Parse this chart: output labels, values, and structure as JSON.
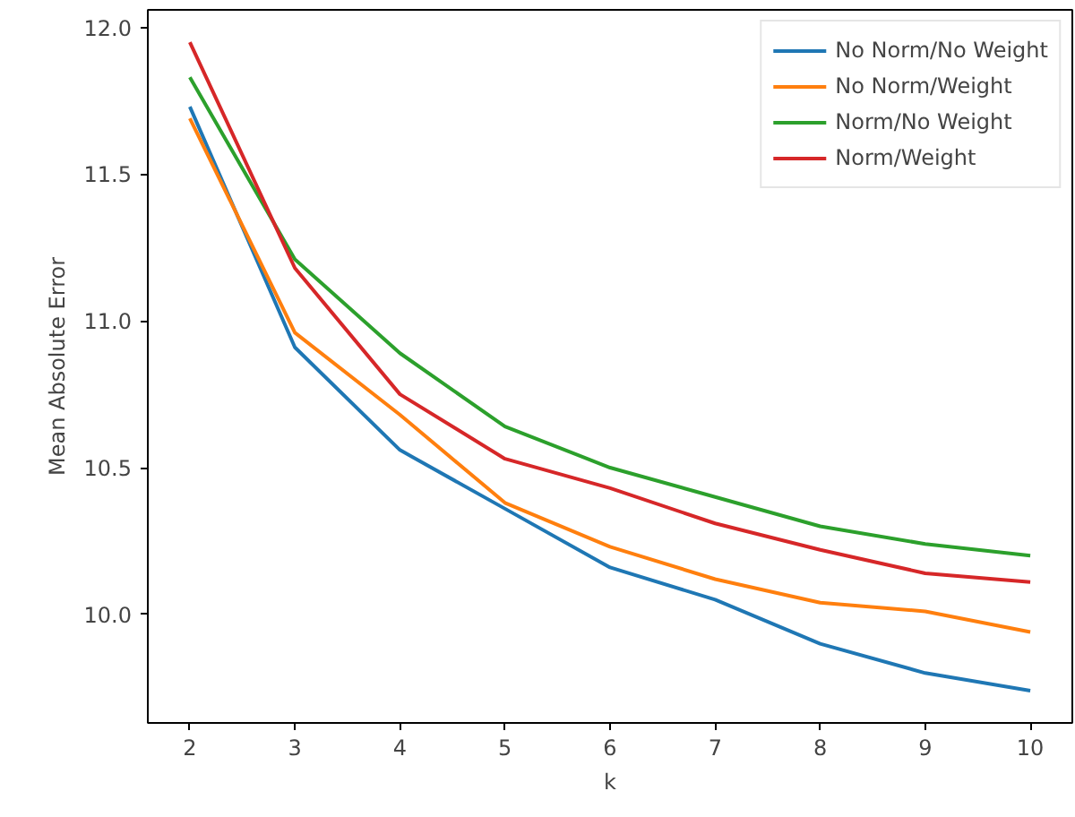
{
  "chart_data": {
    "type": "line",
    "xlabel": "k",
    "ylabel": "Mean Absolute Error",
    "x": [
      2,
      3,
      4,
      5,
      6,
      7,
      8,
      9,
      10
    ],
    "series": [
      {
        "name": "No Norm/No Weight",
        "color": "#1f77b4",
        "values": [
          11.73,
          10.91,
          10.56,
          10.36,
          10.16,
          10.05,
          9.9,
          9.8,
          9.74
        ]
      },
      {
        "name": "No Norm/Weight",
        "color": "#ff7f0e",
        "values": [
          11.69,
          10.96,
          10.68,
          10.38,
          10.23,
          10.12,
          10.04,
          10.01,
          9.94
        ]
      },
      {
        "name": "Norm/No Weight",
        "color": "#2ca02c",
        "values": [
          11.83,
          11.21,
          10.89,
          10.64,
          10.5,
          10.4,
          10.3,
          10.24,
          10.2
        ]
      },
      {
        "name": "Norm/Weight",
        "color": "#d62728",
        "values": [
          11.95,
          11.18,
          10.75,
          10.53,
          10.43,
          10.31,
          10.22,
          10.14,
          10.11
        ]
      }
    ],
    "xlim": [
      1.6,
      10.4
    ],
    "ylim": [
      9.63,
      12.06
    ],
    "xticks": [
      2,
      3,
      4,
      5,
      6,
      7,
      8,
      9,
      10
    ],
    "yticks": [
      {
        "value": 10.0,
        "label": "10.0"
      },
      {
        "value": 10.5,
        "label": "10.5"
      },
      {
        "value": 11.0,
        "label": "11.0"
      },
      {
        "value": 11.5,
        "label": "11.5"
      },
      {
        "value": 12.0,
        "label": "12.0"
      }
    ],
    "legend": "top right",
    "grid": false,
    "line_style": "solid",
    "marker": "none"
  }
}
